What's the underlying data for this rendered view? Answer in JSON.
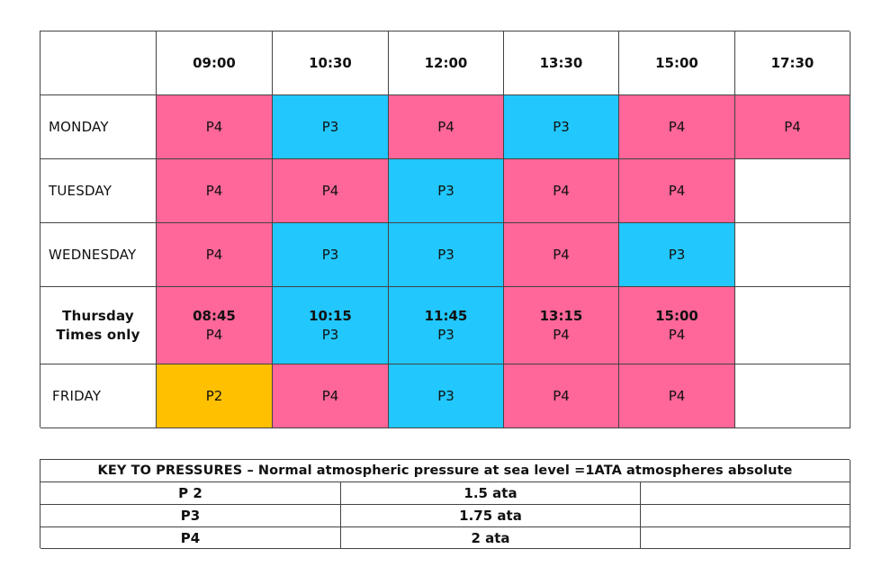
{
  "colors": {
    "P2": "#FFC000",
    "P3": "#21C7FD",
    "P4": "#FF6699"
  },
  "schedule": {
    "corner": "",
    "times": [
      "09:00",
      "10:30",
      "12:00",
      "13:30",
      "15:00",
      "17:30"
    ],
    "rows": [
      {
        "day": "MONDAY",
        "sessions": [
          {
            "pressure": "P4",
            "time": ""
          },
          {
            "pressure": "P3",
            "time": ""
          },
          {
            "pressure": "P4",
            "time": ""
          },
          {
            "pressure": "P3",
            "time": ""
          },
          {
            "pressure": "P4",
            "time": ""
          },
          {
            "pressure": "P4",
            "time": ""
          }
        ]
      },
      {
        "day": "TUESDAY",
        "sessions": [
          {
            "pressure": "P4",
            "time": ""
          },
          {
            "pressure": "P4",
            "time": ""
          },
          {
            "pressure": "P3",
            "time": ""
          },
          {
            "pressure": "P4",
            "time": ""
          },
          {
            "pressure": "P4",
            "time": ""
          },
          {
            "pressure": "",
            "time": ""
          }
        ]
      },
      {
        "day": "WEDNESDAY",
        "sessions": [
          {
            "pressure": "P4",
            "time": ""
          },
          {
            "pressure": "P3",
            "time": ""
          },
          {
            "pressure": "P3",
            "time": ""
          },
          {
            "pressure": "P4",
            "time": ""
          },
          {
            "pressure": "P3",
            "time": ""
          },
          {
            "pressure": "",
            "time": ""
          }
        ]
      },
      {
        "day_line1": "Thursday",
        "day_line2": "Times only",
        "sessions": [
          {
            "pressure": "P4",
            "time": "08:45"
          },
          {
            "pressure": "P3",
            "time": "10:15"
          },
          {
            "pressure": "P3",
            "time": "11:45"
          },
          {
            "pressure": "P4",
            "time": "13:15"
          },
          {
            "pressure": "P4",
            "time": "15:00"
          },
          {
            "pressure": "",
            "time": ""
          }
        ]
      },
      {
        "day": "FRIDAY",
        "sessions": [
          {
            "pressure": "P2",
            "time": ""
          },
          {
            "pressure": "P4",
            "time": ""
          },
          {
            "pressure": "P3",
            "time": ""
          },
          {
            "pressure": "P4",
            "time": ""
          },
          {
            "pressure": "P4",
            "time": ""
          },
          {
            "pressure": "",
            "time": ""
          }
        ]
      }
    ]
  },
  "key": {
    "title": "KEY TO PRESSURES – Normal atmospheric pressure at sea level =1ATA atmospheres absolute",
    "rows": [
      {
        "label": "P 2",
        "value": "1.5 ata",
        "color": "#FFC000"
      },
      {
        "label": "P3",
        "value": "1.75 ata",
        "color": "#21C7FD"
      },
      {
        "label": "P4",
        "value": "2 ata",
        "color": "#FF6699"
      }
    ]
  }
}
